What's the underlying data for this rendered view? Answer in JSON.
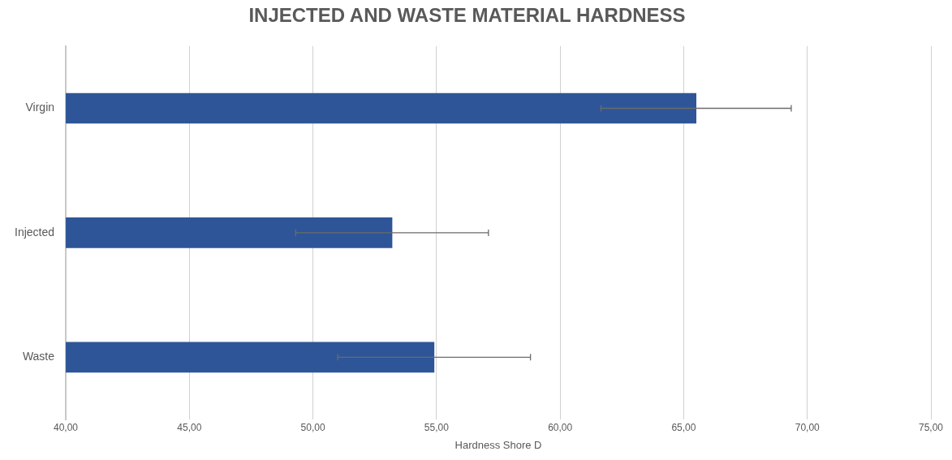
{
  "chart_data": {
    "type": "bar",
    "orientation": "horizontal",
    "title": "INJECTED AND WASTE MATERIAL HARDNESS",
    "xlabel": "Hardness Shore D",
    "categories": [
      "Virgin",
      "Injected",
      "Waste"
    ],
    "values": [
      65.5,
      53.2,
      54.9
    ],
    "errors": [
      3.85,
      3.9,
      3.9
    ],
    "color": "#2e5597",
    "xlim": [
      40,
      75
    ],
    "xticks": [
      {
        "value": 40,
        "label": "40,00"
      },
      {
        "value": 45,
        "label": "45,00"
      },
      {
        "value": 50,
        "label": "50,00"
      },
      {
        "value": 55,
        "label": "55,00"
      },
      {
        "value": 60,
        "label": "60,00"
      },
      {
        "value": 65,
        "label": "65,00"
      },
      {
        "value": 70,
        "label": "70,00"
      },
      {
        "value": 75,
        "label": "75,00"
      }
    ],
    "grid": "x",
    "legend": false
  }
}
